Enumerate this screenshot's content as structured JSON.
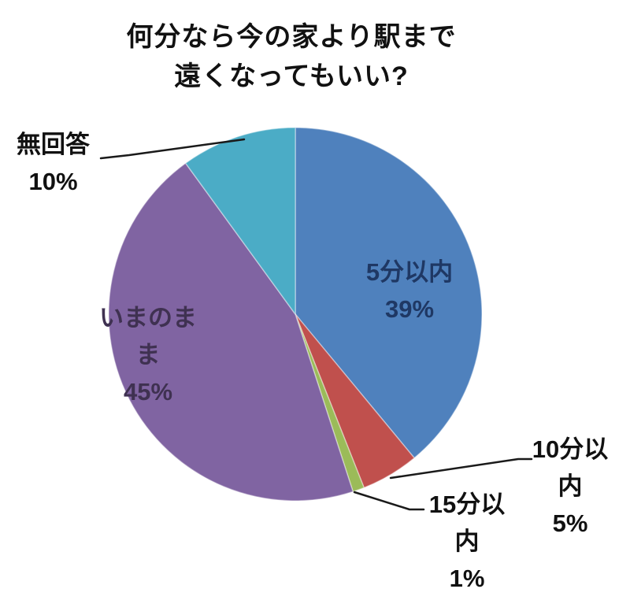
{
  "title": {
    "line1": "何分なら今の家より駅まで",
    "line2": "遠くなってもいい?"
  },
  "labels": {
    "no_answer": {
      "lines": [
        "無回答",
        "10%"
      ]
    },
    "within5": {
      "lines": [
        "5分以内",
        "39%"
      ]
    },
    "current": {
      "lines": [
        "いまのま",
        "ま",
        "45%"
      ]
    },
    "within10": {
      "lines": [
        "10分以",
        "内",
        "5%"
      ]
    },
    "within15": {
      "lines": [
        "15分以",
        "内",
        "1%"
      ]
    }
  },
  "chart_data": {
    "type": "pie",
    "title": "何分なら今の家より駅まで遠くなってもいい?",
    "categories": [
      "5分以内",
      "10分以内",
      "15分以内",
      "いまのまま",
      "無回答"
    ],
    "values": [
      39,
      5,
      1,
      45,
      10
    ],
    "unit": "%",
    "colors": [
      "#4f81bd",
      "#c0504d",
      "#9bbb59",
      "#8064a2",
      "#4bacc6"
    ],
    "label_text_colors": [
      "#1f3864",
      "#111111",
      "#111111",
      "#3f3151",
      "#111111"
    ],
    "start_angle_deg": 0,
    "direction": "clockwise",
    "legend_position": "none",
    "labels_placement": "inside for large slices (5分以内, いまのまま), outside with leader lines for 10分以内, 15分以内, 無回答"
  }
}
